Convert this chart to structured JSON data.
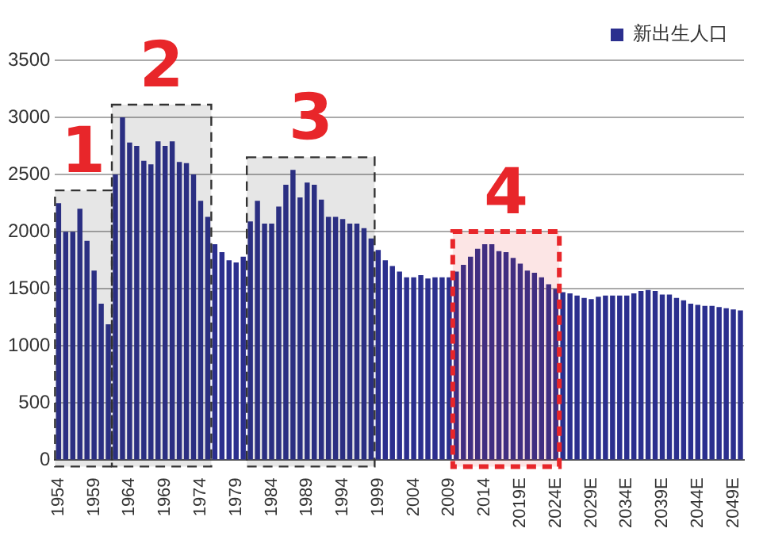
{
  "chart_data": {
    "type": "bar",
    "legend": "top right",
    "grid": "y",
    "x": [
      1954,
      1955,
      1956,
      1957,
      1958,
      1959,
      1960,
      1961,
      1962,
      1963,
      1964,
      1965,
      1966,
      1967,
      1968,
      1969,
      1970,
      1971,
      1972,
      1973,
      1974,
      1975,
      1976,
      1977,
      1978,
      1979,
      1980,
      1981,
      1982,
      1983,
      1984,
      1985,
      1986,
      1987,
      1988,
      1989,
      1990,
      1991,
      1992,
      1993,
      1994,
      1995,
      1996,
      1997,
      1998,
      1999,
      2000,
      2001,
      2002,
      2003,
      2004,
      2005,
      2006,
      2007,
      2008,
      2009,
      2010,
      2011,
      2012,
      2013,
      2014,
      2015,
      2016,
      2017,
      2018,
      2019,
      2020,
      2021,
      2022,
      2023,
      2024,
      2025,
      2026,
      2027,
      2028,
      2029,
      2030,
      2031,
      2032,
      2033,
      2034,
      2035,
      2036,
      2037,
      2038,
      2039,
      2040,
      2041,
      2042,
      2043,
      2044,
      2045,
      2046,
      2047,
      2048,
      2049,
      2050
    ],
    "series": [
      {
        "name": "新出生人口",
        "color": "#2b2f8e",
        "values": [
          2250,
          2000,
          2000,
          2200,
          1920,
          1660,
          1370,
          1190,
          2500,
          3000,
          2780,
          2750,
          2620,
          2590,
          2790,
          2750,
          2790,
          2610,
          2600,
          2500,
          2270,
          2130,
          1890,
          1820,
          1750,
          1730,
          1780,
          2090,
          2270,
          2070,
          2070,
          2220,
          2410,
          2540,
          2300,
          2430,
          2410,
          2280,
          2130,
          2130,
          2110,
          2070,
          2070,
          2030,
          1940,
          1840,
          1750,
          1700,
          1650,
          1600,
          1600,
          1620,
          1590,
          1600,
          1600,
          1600,
          1650,
          1710,
          1780,
          1850,
          1890,
          1890,
          1830,
          1820,
          1770,
          1720,
          1660,
          1640,
          1600,
          1540,
          1500,
          1470,
          1460,
          1440,
          1420,
          1410,
          1430,
          1440,
          1440,
          1440,
          1440,
          1460,
          1480,
          1490,
          1480,
          1450,
          1450,
          1420,
          1400,
          1370,
          1360,
          1350,
          1350,
          1340,
          1330,
          1320,
          1310
        ]
      }
    ],
    "xlim": [
      1953.5,
      2050.5
    ],
    "xticks": [
      1954,
      1959,
      1964,
      1969,
      1974,
      1979,
      1984,
      1989,
      1994,
      1999,
      2004,
      2009,
      2014,
      {
        "value": 2019,
        "label": "2019E"
      },
      {
        "value": 2024,
        "label": "2024E"
      },
      {
        "value": 2029,
        "label": "2029E"
      },
      {
        "value": 2034,
        "label": "2034E"
      },
      {
        "value": 2039,
        "label": "2039E"
      },
      {
        "value": 2044,
        "label": "2044E"
      },
      {
        "value": 2049,
        "label": "2049E"
      }
    ],
    "ylim": [
      0,
      3500
    ],
    "yticks": [
      0,
      500,
      1000,
      1500,
      2000,
      2500,
      3000,
      3500
    ],
    "bands": [
      {
        "axis": "x",
        "from": 1953.5,
        "to": 1961.5,
        "label": "1",
        "color": "#333333"
      },
      {
        "axis": "x",
        "from": 1961.5,
        "to": 1975.5,
        "label": "2",
        "color": "#333333"
      },
      {
        "axis": "x",
        "from": 1980.5,
        "to": 1998.5,
        "label": "3",
        "color": "#333333"
      },
      {
        "axis": "x",
        "from": 2009.5,
        "to": 2024.5,
        "label": "4",
        "color": "#e8262a"
      }
    ]
  }
}
